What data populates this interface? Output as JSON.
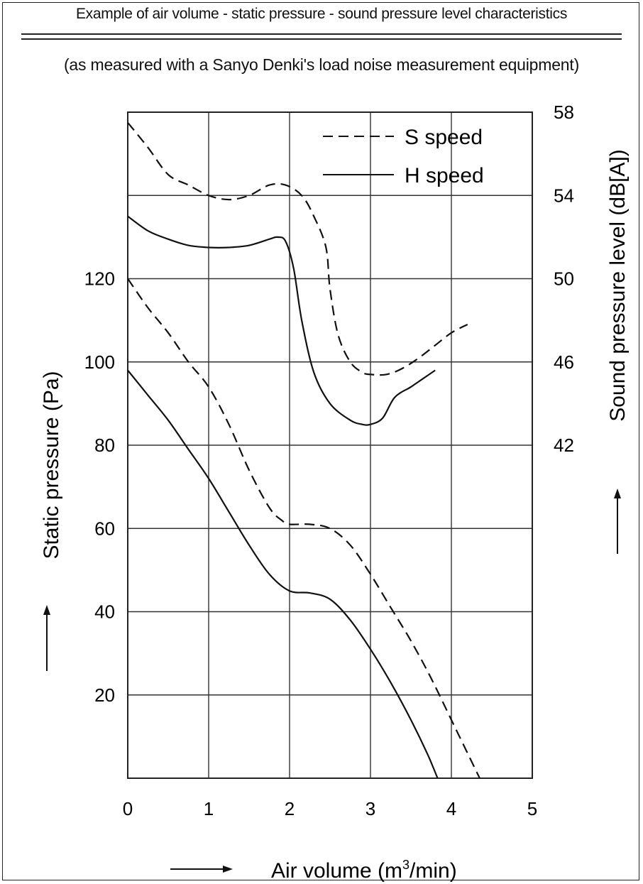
{
  "chart_data": {
    "type": "line",
    "title": "Example of air volume - static pressure - sound pressure level characteristics",
    "subtitle": "(as measured with a Sanyo Denki's load noise measurement equipment)",
    "xlabel": "Air volume (m³/min)",
    "xlabel_main": "Air volume (m",
    "xlabel_sup": "3",
    "xlabel_tail": "/min)",
    "ylabel_left": "Static pressure (Pa)",
    "ylabel_right": "Sound pressure level (dB[A])",
    "xlim": [
      0,
      5
    ],
    "ylim_left": [
      0,
      160
    ],
    "ylim_right": [
      26,
      58
    ],
    "x_ticks": [
      "0",
      "1",
      "2",
      "3",
      "4",
      "5"
    ],
    "y_left_ticks": [
      "120",
      "100",
      "80",
      "60",
      "40",
      "20"
    ],
    "y_left_tick_values": [
      120,
      100,
      80,
      60,
      40,
      20
    ],
    "y_right_ticks": [
      "58",
      "54",
      "50",
      "46",
      "42"
    ],
    "y_right_tick_values": [
      58,
      54,
      50,
      46,
      42
    ],
    "grid": true,
    "legend_position": "top-right",
    "legend": [
      {
        "label": "S speed",
        "style": "dashed"
      },
      {
        "label": "H speed",
        "style": "solid"
      }
    ],
    "series": [
      {
        "name": "S speed",
        "kind": "static pressure",
        "axis": "left",
        "style": "dashed",
        "x": [
          0,
          0.25,
          0.5,
          0.75,
          1.0,
          1.25,
          1.5,
          1.75,
          1.9,
          2.0,
          2.25,
          2.5,
          2.75,
          3.0,
          3.25,
          3.5,
          3.75,
          4.0,
          4.2,
          4.35
        ],
        "y": [
          120,
          113,
          107,
          100,
          94,
          85,
          74,
          65,
          62,
          61,
          61,
          60,
          56,
          49,
          41,
          33,
          24,
          14,
          6,
          0
        ]
      },
      {
        "name": "H speed",
        "kind": "static pressure",
        "axis": "left",
        "style": "solid",
        "x": [
          0,
          0.25,
          0.5,
          0.75,
          1.0,
          1.25,
          1.5,
          1.75,
          2.0,
          2.25,
          2.5,
          2.75,
          3.0,
          3.25,
          3.5,
          3.7,
          3.83
        ],
        "y": [
          98,
          92,
          86,
          79,
          72,
          64,
          56,
          49,
          45,
          44.5,
          43,
          38,
          31,
          23,
          14,
          6,
          0
        ]
      },
      {
        "name": "S speed",
        "kind": "sound pressure level",
        "axis": "right",
        "style": "dashed",
        "x": [
          0,
          0.25,
          0.5,
          0.75,
          1.0,
          1.25,
          1.5,
          1.75,
          1.95,
          2.15,
          2.3,
          2.45,
          2.5,
          2.6,
          2.75,
          2.9,
          3.0,
          3.2,
          3.4,
          3.6,
          3.8,
          4.0,
          4.2
        ],
        "y": [
          57.5,
          56.3,
          55.0,
          54.5,
          54.0,
          53.8,
          54.0,
          54.5,
          54.5,
          54.0,
          53.0,
          51.5,
          49.5,
          47.3,
          46.0,
          45.5,
          45.4,
          45.4,
          45.7,
          46.2,
          46.8,
          47.4,
          47.8
        ]
      },
      {
        "name": "H speed",
        "kind": "sound pressure level",
        "axis": "right",
        "style": "solid",
        "x": [
          0,
          0.25,
          0.5,
          0.75,
          1.0,
          1.25,
          1.5,
          1.75,
          1.85,
          1.95,
          2.05,
          2.15,
          2.3,
          2.5,
          2.75,
          2.9,
          3.0,
          3.15,
          3.3,
          3.5,
          3.65,
          3.8
        ],
        "y": [
          53.0,
          52.3,
          51.9,
          51.6,
          51.5,
          51.5,
          51.6,
          51.9,
          52.0,
          51.8,
          50.5,
          48.0,
          45.5,
          44.0,
          43.2,
          43.0,
          43.0,
          43.3,
          44.3,
          44.8,
          45.2,
          45.6
        ]
      }
    ]
  }
}
